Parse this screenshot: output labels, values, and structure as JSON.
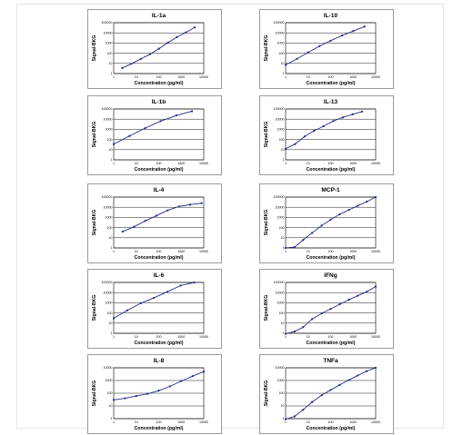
{
  "chart_data": [
    {
      "type": "line",
      "title": "IL-1a",
      "xlabel": "Concentration (pg/ml)",
      "ylabel": "Signal-BKG",
      "xscale": "log",
      "yscale": "log",
      "xlim": [
        1,
        10000
      ],
      "ylim": [
        1,
        100000
      ],
      "xticks": [
        "1",
        "10",
        "100",
        "1000",
        "10000"
      ],
      "yticks": [
        "1",
        "10",
        "100",
        "1000",
        "10000",
        "100000"
      ],
      "grid": true,
      "series": [
        {
          "values": [
            [
              2.4,
              3.5
            ],
            [
              6,
              9
            ],
            [
              16,
              28
            ],
            [
              41,
              80
            ],
            [
              102,
              280
            ],
            [
              256,
              1100
            ],
            [
              640,
              3800
            ],
            [
              1600,
              11000
            ],
            [
              4000,
              35000
            ]
          ]
        }
      ]
    },
    {
      "type": "line",
      "title": "IL-10",
      "xlabel": "Concentration (pg/ml)",
      "ylabel": "Signal-BKG",
      "xscale": "log",
      "yscale": "log",
      "xlim": [
        1,
        10000
      ],
      "ylim": [
        1,
        100000
      ],
      "xticks": [
        "1",
        "10",
        "100",
        "1000",
        "10000"
      ],
      "yticks": [
        "1",
        "10",
        "100",
        "1000",
        "10000",
        "100000"
      ],
      "grid": true,
      "series": [
        {
          "values": [
            [
              1,
              7
            ],
            [
              3.2,
              28
            ],
            [
              10,
              120
            ],
            [
              32,
              500
            ],
            [
              100,
              1700
            ],
            [
              320,
              5500
            ],
            [
              1000,
              15000
            ],
            [
              3200,
              42000
            ]
          ]
        }
      ]
    },
    {
      "type": "line",
      "title": "IL-1b",
      "xlabel": "Concentration (pg/ml)",
      "ylabel": "Signal-BKG",
      "xscale": "log",
      "yscale": "log",
      "xlim": [
        1,
        10000
      ],
      "ylim": [
        1,
        100000
      ],
      "xticks": [
        "1",
        "10",
        "100",
        "1000",
        "10000"
      ],
      "yticks": [
        "1",
        "10",
        "100",
        "1000",
        "10000",
        "100000"
      ],
      "grid": true,
      "series": [
        {
          "values": [
            [
              1,
              35
            ],
            [
              5,
              220
            ],
            [
              25,
              1300
            ],
            [
              122,
              6500
            ],
            [
              610,
              23000
            ],
            [
              3000,
              60000
            ]
          ]
        }
      ]
    },
    {
      "type": "line",
      "title": "IL-13",
      "xlabel": "Concentration (pg/ml)",
      "ylabel": "Signal-BKG",
      "xscale": "log",
      "yscale": "log",
      "xlim": [
        1,
        10000
      ],
      "ylim": [
        1,
        100000
      ],
      "xticks": [
        "1",
        "10",
        "100",
        "1000",
        "10000"
      ],
      "yticks": [
        "1",
        "10",
        "100",
        "1000",
        "10000",
        "100000"
      ],
      "grid": true,
      "series": [
        {
          "values": [
            [
              1,
              12
            ],
            [
              2.6,
              35
            ],
            [
              7,
              200
            ],
            [
              18,
              700
            ],
            [
              48,
              2000
            ],
            [
              130,
              6500
            ],
            [
              350,
              15000
            ],
            [
              950,
              30000
            ],
            [
              2500,
              55000
            ]
          ]
        }
      ]
    },
    {
      "type": "line",
      "title": "IL-4",
      "xlabel": "Concentration (pg/ml)",
      "ylabel": "Signal-BKG",
      "xscale": "log",
      "yscale": "log",
      "xlim": [
        1,
        10000
      ],
      "ylim": [
        1,
        100000
      ],
      "xticks": [
        "1",
        "10",
        "100",
        "1000",
        "10000"
      ],
      "yticks": [
        "1",
        "10",
        "100",
        "1000",
        "10000",
        "100000"
      ],
      "grid": true,
      "series": [
        {
          "values": [
            [
              2.5,
              40
            ],
            [
              8,
              120
            ],
            [
              25,
              450
            ],
            [
              80,
              1500
            ],
            [
              250,
              5000
            ],
            [
              800,
              12000
            ],
            [
              2500,
              18000
            ],
            [
              8000,
              25000
            ]
          ]
        }
      ]
    },
    {
      "type": "line",
      "title": "MCP-1",
      "xlabel": "Concentration (pg/ml)",
      "ylabel": "Signal-BKG",
      "xscale": "log",
      "yscale": "log",
      "xlim": [
        1,
        10000
      ],
      "ylim": [
        1,
        100000
      ],
      "xticks": [
        "1",
        "10",
        "100",
        "1000",
        "10000"
      ],
      "yticks": [
        "1",
        "10",
        "100",
        "1000",
        "10000",
        "100000"
      ],
      "grid": true,
      "series": [
        {
          "values": [
            [
              1,
              1
            ],
            [
              2.5,
              1.2
            ],
            [
              6,
              6
            ],
            [
              15,
              30
            ],
            [
              40,
              160
            ],
            [
              100,
              600
            ],
            [
              250,
              2000
            ],
            [
              650,
              5500
            ],
            [
              1600,
              14000
            ],
            [
              4000,
              35000
            ],
            [
              10000,
              100000
            ]
          ]
        }
      ]
    },
    {
      "type": "line",
      "title": "IL-6",
      "xlabel": "Concentration (pg/ml)",
      "ylabel": "Signal-BKG",
      "xscale": "log",
      "yscale": "log",
      "xlim": [
        1,
        10000
      ],
      "ylim": [
        1,
        100000
      ],
      "xticks": [
        "1",
        "10",
        "100",
        "1000",
        "10000"
      ],
      "yticks": [
        "1",
        "10",
        "100",
        "1000",
        "10000",
        "100000"
      ],
      "grid": true,
      "series": [
        {
          "values": [
            [
              1,
              30
            ],
            [
              4,
              180
            ],
            [
              16,
              900
            ],
            [
              60,
              3000
            ],
            [
              240,
              12000
            ],
            [
              950,
              50000
            ],
            [
              3800,
              100000
            ]
          ]
        }
      ]
    },
    {
      "type": "line",
      "title": "IFNg",
      "xlabel": "Concentration (pg/ml)",
      "ylabel": "Signal-BKG",
      "xscale": "log",
      "yscale": "log",
      "xlim": [
        1,
        10000
      ],
      "ylim": [
        1,
        100000
      ],
      "xticks": [
        "1",
        "10",
        "100",
        "1000",
        "10000"
      ],
      "yticks": [
        "1",
        "10",
        "100",
        "1000",
        "10000",
        "100000"
      ],
      "grid": true,
      "series": [
        {
          "values": [
            [
              1,
              0.9
            ],
            [
              2.5,
              1.5
            ],
            [
              6,
              4
            ],
            [
              15,
              25
            ],
            [
              40,
              90
            ],
            [
              100,
              250
            ],
            [
              250,
              700
            ],
            [
              650,
              2000
            ],
            [
              1600,
              5000
            ],
            [
              4000,
              12000
            ],
            [
              10000,
              40000
            ]
          ]
        }
      ]
    },
    {
      "type": "line",
      "title": "IL-8",
      "xlabel": "Concentration (pg/ml)",
      "ylabel": "Signal-BKG",
      "xscale": "log",
      "yscale": "log",
      "xlim": [
        1,
        10000
      ],
      "ylim": [
        1,
        10000
      ],
      "xticks": [
        "1",
        "10",
        "100",
        "1000",
        "10000"
      ],
      "yticks": [
        "1",
        "10",
        "100",
        "1000",
        "10000"
      ],
      "grid": true,
      "series": [
        {
          "values": [
            [
              1,
              30
            ],
            [
              3.2,
              40
            ],
            [
              10,
              60
            ],
            [
              32,
              90
            ],
            [
              100,
              160
            ],
            [
              320,
              350
            ],
            [
              1000,
              900
            ],
            [
              3200,
              2200
            ],
            [
              10000,
              5000
            ]
          ]
        }
      ]
    },
    {
      "type": "line",
      "title": "TNFa",
      "xlabel": "Concentration (pg/ml)",
      "ylabel": "Signal-BKG",
      "xscale": "log",
      "yscale": "log",
      "xlim": [
        1,
        10000
      ],
      "ylim": [
        1,
        10000
      ],
      "xticks": [
        "1",
        "10",
        "100",
        "1000",
        "10000"
      ],
      "yticks": [
        "1",
        "10",
        "100",
        "1000",
        "10000"
      ],
      "grid": true,
      "series": [
        {
          "values": [
            [
              1,
              0.8
            ],
            [
              2.5,
              1.5
            ],
            [
              6,
              5
            ],
            [
              15,
              20
            ],
            [
              40,
              70
            ],
            [
              100,
              180
            ],
            [
              250,
              450
            ],
            [
              650,
              1100
            ],
            [
              1600,
              2500
            ],
            [
              4000,
              5500
            ],
            [
              10000,
              10000
            ]
          ]
        }
      ]
    }
  ]
}
